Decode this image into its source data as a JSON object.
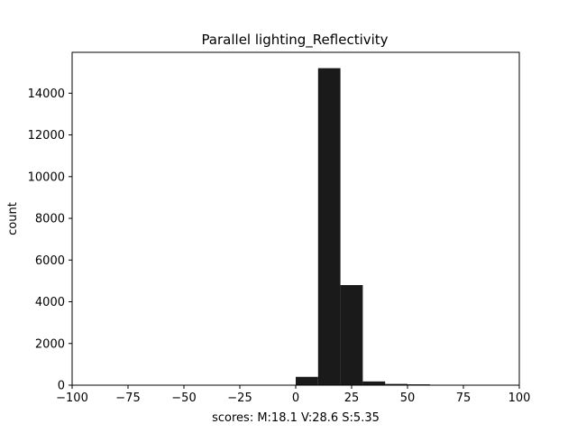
{
  "chart_data": {
    "type": "bar",
    "title": "Parallel lighting_Reflectivity",
    "xlabel": "scores: M:18.1 V:28.6 S:5.35",
    "ylabel": "count",
    "xlim": [
      -100,
      100
    ],
    "ylim": [
      0,
      15960
    ],
    "grid": false,
    "legend": null,
    "bar_color": "#1a1a1a",
    "x_ticks": [
      -100,
      -75,
      -50,
      -25,
      0,
      25,
      50,
      75,
      100
    ],
    "x_tick_labels": [
      "−100",
      "−75",
      "−50",
      "−25",
      "0",
      "25",
      "50",
      "75",
      "100"
    ],
    "y_ticks": [
      0,
      2000,
      4000,
      6000,
      8000,
      10000,
      12000,
      14000
    ],
    "y_tick_labels": [
      "0",
      "2000",
      "4000",
      "6000",
      "8000",
      "10000",
      "12000",
      "14000"
    ],
    "bins": [
      {
        "x0": 0,
        "x1": 10,
        "value": 400
      },
      {
        "x0": 10,
        "x1": 20,
        "value": 15200
      },
      {
        "x0": 20,
        "x1": 30,
        "value": 4800
      },
      {
        "x0": 30,
        "x1": 40,
        "value": 180
      },
      {
        "x0": 40,
        "x1": 50,
        "value": 60
      },
      {
        "x0": 50,
        "x1": 60,
        "value": 40
      }
    ]
  }
}
